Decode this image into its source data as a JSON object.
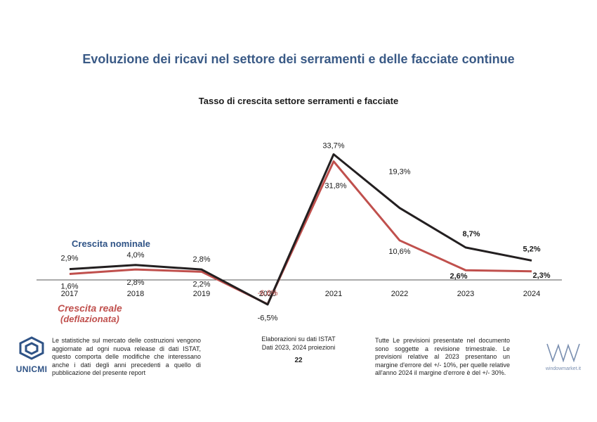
{
  "header": {
    "title": "Evoluzione dei ricavi nel settore dei serramenti e delle facciate continue"
  },
  "chart_data": {
    "type": "line",
    "title": "Tasso di crescita settore serramenti e facciate",
    "categories": [
      "2017",
      "2018",
      "2019",
      "2020",
      "2021",
      "2022",
      "2023",
      "2024"
    ],
    "ylim": [
      -9,
      40
    ],
    "grid": false,
    "series": [
      {
        "name": "Crescita nominale",
        "color": "#231f20",
        "values": [
          2.9,
          4.0,
          2.8,
          -6.6,
          33.7,
          19.3,
          8.7,
          5.2
        ],
        "labels": [
          "2,9%",
          "4,0%",
          "2,8%",
          "-6,6%",
          "33,7%",
          "19,3%",
          "8,7%",
          "5,2%"
        ]
      },
      {
        "name": "Crescita reale (deflazionata)",
        "color": "#c0504d",
        "values": [
          1.6,
          2.8,
          2.2,
          -6.5,
          31.8,
          10.6,
          2.6,
          2.3
        ],
        "labels": [
          "1,6%",
          "2,8%",
          "2,2%",
          "-6,5%",
          "31,8%",
          "10,6%",
          "2,6%",
          "2,3%"
        ]
      }
    ]
  },
  "legend": {
    "nominal": "Crescita nominale",
    "real_line1": "Crescita reale",
    "real_line2": "(deflazionata)"
  },
  "footer": {
    "left_note": "Le statistiche sul mercato delle costruzioni vengono aggiornate ad ogni nuova release di dati ISTAT, questo comporta delle modifiche che interessano anche i dati degli anni precedenti a quello di pubblicazione del presente report",
    "center_line1": "Elaborazioni su dati ISTAT",
    "center_line2": "Dati 2023, 2024 proiezioni",
    "page_number": "22",
    "right_note": "Tutte Le previsioni presentate nel documento sono soggette a revisione trimestrale. Le previsioni relative al 2023 presentano un margine d'errore del +/- 10%, per quelle relative all'anno 2024 il margine d'errore è del +/- 30%.",
    "logo_left": "UNICMI",
    "logo_right": "windowmarket.it"
  }
}
